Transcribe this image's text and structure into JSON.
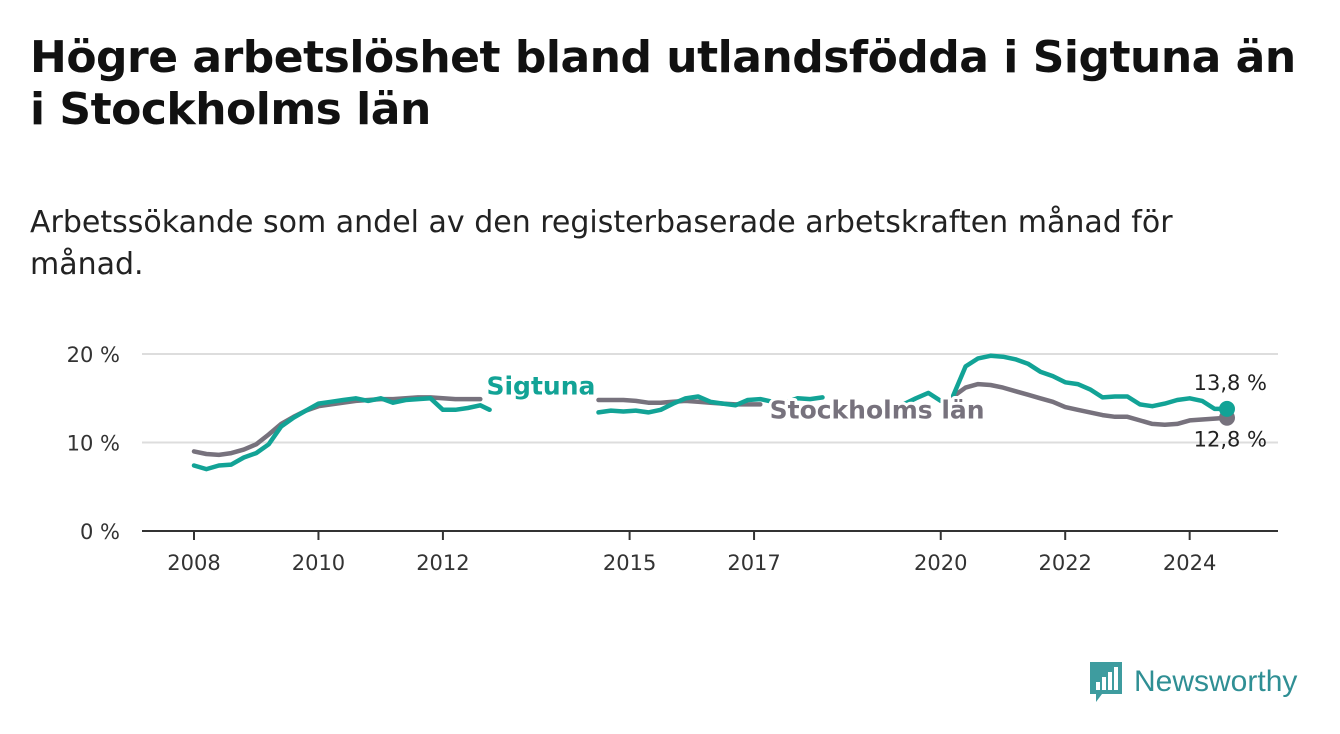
{
  "title": "Högre arbetslöshet bland utlandsfödda i Sigtuna än i Stockholms län",
  "subtitle": "Arbetssökande som andel av den registerbaserade arbetskraften månad för månad.",
  "brand": {
    "name": "Newsworthy"
  },
  "colors": {
    "sigtuna": "#12a396",
    "stockholm": "#77727d",
    "grid": "#dddddd",
    "axis": "#333333"
  },
  "chart_data": {
    "type": "line",
    "title": "Högre arbetslöshet bland utlandsfödda i Sigtuna än i Stockholms län",
    "xlabel": "",
    "ylabel": "",
    "xlim": [
      2007.9,
      2025.5
    ],
    "ylim": [
      0,
      20
    ],
    "yticks": [
      0,
      10,
      20
    ],
    "ytick_labels": [
      "0 %",
      "10 %",
      "20 %"
    ],
    "xticks": [
      2008,
      2010,
      2012,
      2015,
      2017,
      2020,
      2022,
      2024
    ],
    "xtick_labels": [
      "2008",
      "2010",
      "2012",
      "2015",
      "2017",
      "2020",
      "2022",
      "2024"
    ],
    "grid": true,
    "series": [
      {
        "name": "Sigtuna",
        "color": "#12a396",
        "segments": [
          {
            "x": [
              2008.0,
              2008.2,
              2008.4,
              2008.6,
              2008.8,
              2009.0,
              2009.2,
              2009.4,
              2009.6,
              2009.8,
              2010.0,
              2010.2,
              2010.4,
              2010.6,
              2010.8,
              2011.0,
              2011.2,
              2011.4,
              2011.6,
              2011.8,
              2012.0,
              2012.2,
              2012.4,
              2012.6,
              2012.75
            ],
            "y": [
              7.4,
              7.0,
              7.4,
              7.5,
              8.3,
              8.8,
              9.8,
              11.8,
              12.8,
              13.6,
              14.4,
              14.6,
              14.8,
              15.0,
              14.7,
              15.0,
              14.5,
              14.8,
              14.9,
              15.0,
              13.7,
              13.7,
              13.9,
              14.2,
              13.7
            ]
          },
          {
            "x": [
              2014.5,
              2014.7,
              2014.9,
              2015.1,
              2015.3,
              2015.5,
              2015.7,
              2015.9,
              2016.1,
              2016.3,
              2016.5,
              2016.7,
              2016.9,
              2017.1,
              2017.3,
              2017.5,
              2017.7,
              2017.9,
              2018.1
            ],
            "y": [
              13.4,
              13.6,
              13.5,
              13.6,
              13.4,
              13.7,
              14.4,
              15.0,
              15.2,
              14.6,
              14.4,
              14.2,
              14.8,
              14.9,
              14.6,
              14.5,
              15.0,
              14.9,
              15.1
            ]
          },
          {
            "x": [
              2019.4,
              2019.6,
              2019.8,
              2020.0
            ],
            "y": [
              14.3,
              15.0,
              15.6,
              14.7
            ]
          },
          {
            "x": [
              2020.2,
              2020.4,
              2020.6,
              2020.8,
              2021.0,
              2021.2,
              2021.4,
              2021.6,
              2021.8,
              2022.0,
              2022.2,
              2022.4,
              2022.6,
              2022.8,
              2023.0,
              2023.2,
              2023.4,
              2023.6,
              2023.8,
              2024.0,
              2024.2,
              2024.4,
              2024.6
            ],
            "y": [
              15.3,
              18.6,
              19.5,
              19.8,
              19.7,
              19.4,
              18.9,
              18.0,
              17.5,
              16.8,
              16.6,
              16.0,
              15.1,
              15.2,
              15.2,
              14.3,
              14.1,
              14.4,
              14.8,
              15.0,
              14.7,
              13.8,
              13.8
            ]
          }
        ]
      },
      {
        "name": "Stockholms län",
        "color": "#77727d",
        "segments": [
          {
            "x": [
              2008.0,
              2008.2,
              2008.4,
              2008.6,
              2008.8,
              2009.0,
              2009.2,
              2009.4,
              2009.6,
              2009.8,
              2010.0,
              2010.2,
              2010.4,
              2010.6,
              2010.8,
              2011.0,
              2011.2,
              2011.4,
              2011.6,
              2011.8,
              2012.0,
              2012.2,
              2012.4,
              2012.6
            ],
            "y": [
              9.0,
              8.7,
              8.6,
              8.8,
              9.2,
              9.8,
              10.9,
              12.1,
              12.9,
              13.6,
              14.1,
              14.3,
              14.5,
              14.7,
              14.8,
              14.9,
              14.9,
              15.0,
              15.1,
              15.1,
              15.0,
              14.9,
              14.9,
              14.9
            ]
          },
          {
            "x": [
              2014.5,
              2014.7,
              2014.9,
              2015.1,
              2015.3,
              2015.5,
              2015.7,
              2015.9,
              2016.1,
              2016.3,
              2016.5,
              2016.7,
              2016.9,
              2017.1
            ],
            "y": [
              14.8,
              14.8,
              14.8,
              14.7,
              14.5,
              14.5,
              14.6,
              14.7,
              14.6,
              14.5,
              14.4,
              14.3,
              14.3,
              14.3
            ]
          },
          {
            "x": [
              2020.2,
              2020.4,
              2020.6,
              2020.8,
              2021.0,
              2021.2,
              2021.4,
              2021.6,
              2021.8,
              2022.0,
              2022.2,
              2022.4,
              2022.6,
              2022.8,
              2023.0,
              2023.2,
              2023.4,
              2023.6,
              2023.8,
              2024.0,
              2024.2,
              2024.4,
              2024.6
            ],
            "y": [
              15.2,
              16.2,
              16.6,
              16.5,
              16.2,
              15.8,
              15.4,
              15.0,
              14.6,
              14.0,
              13.7,
              13.4,
              13.1,
              12.9,
              12.9,
              12.5,
              12.1,
              12.0,
              12.1,
              12.5,
              12.6,
              12.7,
              12.8
            ]
          }
        ]
      }
    ],
    "annotations": {
      "series_labels": [
        {
          "text": "Sigtuna",
          "series": "Sigtuna",
          "x": 2012.7,
          "y": 15.4
        },
        {
          "text": "Stockholms län",
          "series": "Stockholms län",
          "x": 2017.25,
          "y": 12.7
        }
      ],
      "end_values": [
        {
          "text": "13,8 %",
          "series": "Sigtuna",
          "x": 2024.6,
          "y": 13.8
        },
        {
          "text": "12,8 %",
          "series": "Stockholms län",
          "x": 2024.6,
          "y": 12.8
        }
      ]
    }
  }
}
